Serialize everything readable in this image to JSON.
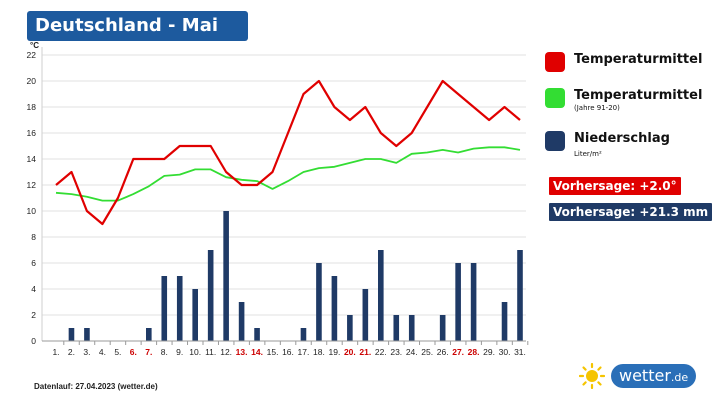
{
  "title": "Deutschland - Mai",
  "unit_label": "°C",
  "legend": [
    {
      "label": "Temperaturmittel",
      "sub": "",
      "color": "#e00000"
    },
    {
      "label": "Temperaturmittel",
      "sub": "(Jahre 91-20)",
      "color": "#33dd33"
    },
    {
      "label": "Niederschlag",
      "sub": "Liter/m²",
      "color": "#1f3a66"
    }
  ],
  "forecast_temp": {
    "text": "Vorhersage: +2.0°",
    "color": "#e00000"
  },
  "forecast_precip": {
    "text": "Vorhersage: +21.3 mm",
    "color": "#1f3a66"
  },
  "footnote": "Datenlauf: 27.04.2023 (wetter.de)",
  "brand": {
    "name": "wetter",
    "tld": ".de",
    "icon": "sun-icon"
  },
  "chart_data": {
    "type": "bar+line",
    "x": [
      "1.",
      "2.",
      "3.",
      "4.",
      "5.",
      "6.",
      "7.",
      "8.",
      "9.",
      "10.",
      "11.",
      "12.",
      "13.",
      "14.",
      "15.",
      "16.",
      "17.",
      "18.",
      "19.",
      "20.",
      "21.",
      "22.",
      "23.",
      "24.",
      "25.",
      "26.",
      "27.",
      "28.",
      "29.",
      "30.",
      "31."
    ],
    "x_highlight": [
      "6.",
      "7.",
      "13.",
      "14.",
      "20.",
      "21.",
      "27.",
      "28."
    ],
    "highlight_color": "#cc0000",
    "ylim": [
      0,
      22
    ],
    "yticks": [
      0,
      2,
      4,
      6,
      8,
      10,
      12,
      14,
      16,
      18,
      20,
      22
    ],
    "grid": true,
    "series": [
      {
        "name": "Temperaturmittel",
        "type": "line",
        "color": "#e00000",
        "values": [
          12,
          13,
          10,
          9,
          11,
          14,
          14,
          14,
          15,
          15,
          15,
          13,
          12,
          12,
          13,
          16,
          19,
          20,
          18,
          17,
          18,
          16,
          15,
          16,
          18,
          20,
          19,
          18,
          17,
          18,
          17
        ]
      },
      {
        "name": "Temperaturmittel (Jahre 91-20)",
        "type": "line",
        "color": "#33dd33",
        "values": [
          11.4,
          11.3,
          11.1,
          10.8,
          10.8,
          11.3,
          11.9,
          12.7,
          12.8,
          13.2,
          13.2,
          12.6,
          12.4,
          12.3,
          11.7,
          12.3,
          13.0,
          13.3,
          13.4,
          13.7,
          14.0,
          14.0,
          13.7,
          14.4,
          14.5,
          14.7,
          14.5,
          14.8,
          14.9,
          14.9,
          14.7
        ]
      },
      {
        "name": "Niederschlag",
        "type": "bar",
        "color": "#1f3a66",
        "values": [
          0,
          1,
          1,
          0,
          0,
          0,
          1,
          5,
          5,
          4,
          7,
          10,
          3,
          1,
          0,
          0,
          1,
          6,
          5,
          2,
          4,
          7,
          2,
          2,
          0,
          2,
          6,
          6,
          0,
          3,
          7
        ]
      }
    ]
  }
}
